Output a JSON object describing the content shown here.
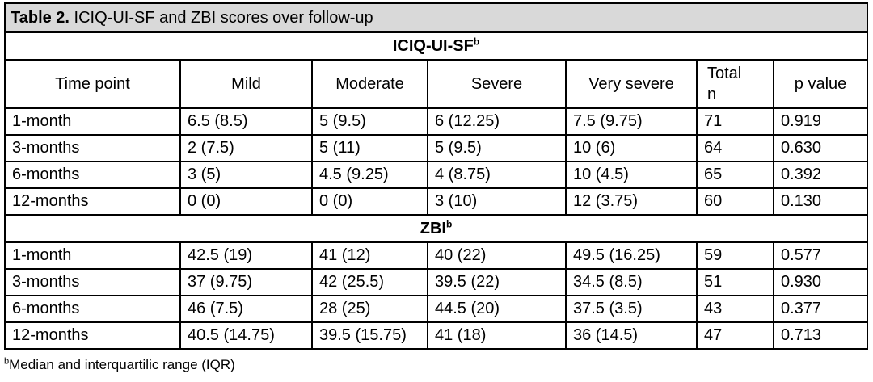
{
  "caption": {
    "label": "Table 2.",
    "text": " ICIQ-UI-SF and ZBI scores over follow-up"
  },
  "columns": [
    "Time point",
    "Mild",
    "Moderate",
    "Severe",
    "Very severe",
    "Total\nn",
    "p value"
  ],
  "columns_total_line1": "Total",
  "columns_total_line2": "n",
  "sections": [
    {
      "title": "ICIQ-UI-SF",
      "sup": "b",
      "rows": [
        [
          "1-month",
          "6.5 (8.5)",
          "5 (9.5)",
          "6 (12.25)",
          "7.5 (9.75)",
          "71",
          "0.919"
        ],
        [
          "3-months",
          "2 (7.5)",
          "5 (11)",
          "5 (9.5)",
          "10 (6)",
          "64",
          "0.630"
        ],
        [
          "6-months",
          "3 (5)",
          "4.5 (9.25)",
          "4 (8.75)",
          "10 (4.5)",
          "65",
          "0.392"
        ],
        [
          "12-months",
          "0 (0)",
          "0 (0)",
          "3 (10)",
          "12 (3.75)",
          "60",
          "0.130"
        ]
      ]
    },
    {
      "title": "ZBI",
      "sup": "b",
      "rows": [
        [
          "1-month",
          "42.5 (19)",
          "41 (12)",
          "40 (22)",
          "49.5 (16.25)",
          "59",
          "0.577"
        ],
        [
          "3-months",
          "37 (9.75)",
          "42 (25.5)",
          "39.5 (22)",
          "34.5 (8.5)",
          "51",
          "0.930"
        ],
        [
          "6-months",
          "46 (7.5)",
          "28 (25)",
          "44.5 (20)",
          "37.5 (3.5)",
          "43",
          "0.377"
        ],
        [
          "12-months",
          "40.5 (14.75)",
          "39.5 (15.75)",
          "41 (18)",
          "36 (14.5)",
          "47",
          "0.713"
        ]
      ]
    }
  ],
  "footnote": {
    "sup": "b",
    "text": "Median and interquartilic range (IQR)"
  },
  "colors": {
    "caption_bg": "#d9d9d9",
    "border": "#000000"
  }
}
